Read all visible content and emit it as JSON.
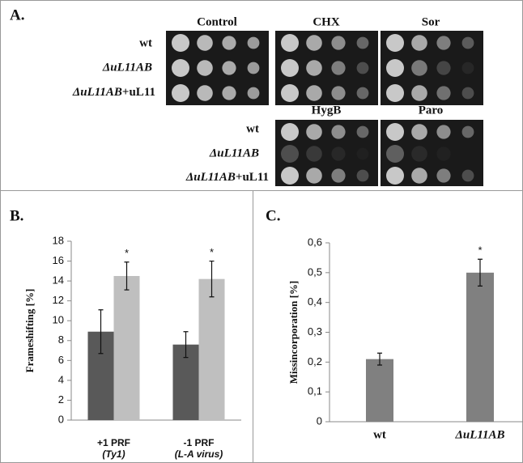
{
  "panel_a": {
    "label": "A.",
    "treatments_top": [
      "Control",
      "CHX",
      "Sor"
    ],
    "treatments_bottom": [
      "HygB",
      "Paro"
    ],
    "strains_top": [
      [
        "wt"
      ],
      [
        "ΔuL11AB"
      ],
      [
        "ΔuL11AB",
        "+uL11"
      ]
    ],
    "strains_bottom": [
      [
        "wt"
      ],
      [
        "ΔuL11AB"
      ],
      [
        "ΔuL11AB",
        "+uL11"
      ]
    ]
  },
  "chart_data": [
    {
      "type": "bar",
      "panel": "B.",
      "ylabel": "Frameshifting [%]",
      "categories": [
        "+1 PRF",
        "-1 PRF"
      ],
      "category_sublabels": [
        "(Ty1)",
        "(L-A virus)"
      ],
      "series": [
        {
          "color": "#595959",
          "values": [
            8.9,
            7.6
          ],
          "errors": [
            2.2,
            1.3
          ]
        },
        {
          "color": "#bfbfbf",
          "values": [
            14.5,
            14.2
          ],
          "errors": [
            1.4,
            1.8
          ],
          "labels": [
            "*",
            "*"
          ]
        }
      ],
      "ylim": [
        0,
        18
      ],
      "yticks": [
        0,
        2,
        4,
        6,
        8,
        10,
        12,
        14,
        16,
        18
      ],
      "grid": false
    },
    {
      "type": "bar",
      "panel": "C.",
      "ylabel": "Missincorporation [%]",
      "categories": [
        "wt",
        "ΔuL11AB"
      ],
      "series": [
        {
          "color": "#808080",
          "values": [
            0.21,
            0.5
          ],
          "errors": [
            0.02,
            0.045
          ],
          "labels": [
            null,
            "*"
          ]
        }
      ],
      "ylim": [
        0,
        0.6
      ],
      "yticks": [
        0,
        {
          "value": 0.1,
          "label": "0,1"
        },
        {
          "value": 0.2,
          "label": "0,2"
        },
        {
          "value": 0.3,
          "label": "0,3"
        },
        {
          "value": 0.4,
          "label": "0,4"
        },
        {
          "value": 0.5,
          "label": "0,5"
        },
        {
          "value": 0.6,
          "label": "0,6"
        }
      ],
      "grid": false
    }
  ]
}
